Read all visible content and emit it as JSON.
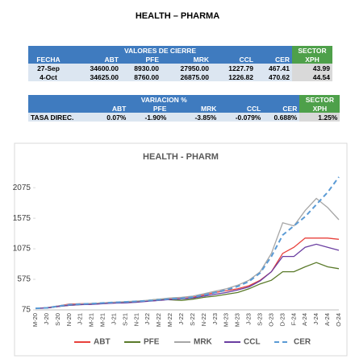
{
  "header": {
    "title": "HEALTH – PHARMA"
  },
  "closing_table": {
    "group_title": "VALORES DE CIERRE",
    "sector_title": "SECTOR",
    "columns": [
      "FECHA",
      "ABT",
      "PFE",
      "MRK",
      "CCL",
      "CER",
      "XPH"
    ],
    "rows": [
      [
        "27-Sep",
        "34600.00",
        "8930.00",
        "27950.00",
        "1227.79",
        "467.41",
        "43.99"
      ],
      [
        "4-Oct",
        "34625.00",
        "8760.00",
        "26875.00",
        "1226.82",
        "470.62",
        "44.54"
      ]
    ]
  },
  "variation_table": {
    "group_title": "VARIACION %",
    "sector_title": "SECTOR",
    "columns": [
      "ABT",
      "PFE",
      "MRK",
      "CCL",
      "CER",
      "XPH"
    ],
    "rows": [
      [
        "TASA DIREC.",
        "0.07%",
        "-1.90%",
        "-3.85%",
        "-0.079%",
        "0.688%",
        "1.25%"
      ]
    ]
  },
  "chart_data": {
    "type": "line",
    "title": "HEALTH - PHARM",
    "categories": [
      "M-20",
      "J-20",
      "S-20",
      "N-20",
      "J-21",
      "M-21",
      "M-21",
      "J-21",
      "S-21",
      "N-21",
      "J-22",
      "M-22",
      "M-22",
      "J-22",
      "S-22",
      "N-22",
      "J-23",
      "M-23",
      "M-23",
      "J-23",
      "S-23",
      "O-23",
      "D-23",
      "F-24",
      "A-24",
      "J-24",
      "A-24",
      "O-24"
    ],
    "series": [
      {
        "name": "ABT",
        "color": "#e8413b",
        "values": [
          100,
          110,
          140,
          170,
          175,
          180,
          190,
          200,
          200,
          210,
          220,
          230,
          250,
          260,
          280,
          320,
          360,
          390,
          420,
          470,
          560,
          700,
          1000,
          1100,
          1250,
          1250,
          1250,
          1230
        ]
      },
      {
        "name": "PFE",
        "color": "#5a7a2a",
        "values": [
          100,
          105,
          130,
          150,
          160,
          170,
          180,
          190,
          200,
          200,
          230,
          250,
          240,
          230,
          250,
          280,
          300,
          330,
          360,
          420,
          500,
          560,
          700,
          700,
          780,
          850,
          780,
          750
        ]
      },
      {
        "name": "MRK",
        "color": "#a6a6a6",
        "values": [
          100,
          110,
          140,
          160,
          170,
          180,
          190,
          200,
          210,
          220,
          230,
          250,
          270,
          280,
          300,
          340,
          380,
          420,
          480,
          560,
          700,
          1000,
          1500,
          1450,
          1700,
          1900,
          1750,
          1550
        ]
      },
      {
        "name": "CCL",
        "color": "#6a3ea1",
        "values": [
          100,
          105,
          130,
          150,
          160,
          165,
          175,
          185,
          190,
          200,
          215,
          230,
          245,
          255,
          270,
          300,
          330,
          360,
          400,
          450,
          550,
          700,
          950,
          950,
          1100,
          1150,
          1100,
          1050
        ]
      },
      {
        "name": "CER",
        "color": "#5b9bd5",
        "dashed": true,
        "values": [
          100,
          108,
          135,
          160,
          170,
          178,
          188,
          198,
          205,
          215,
          225,
          240,
          255,
          265,
          285,
          320,
          360,
          400,
          460,
          540,
          680,
          950,
          1300,
          1450,
          1600,
          1800,
          2000,
          2250
        ]
      }
    ],
    "ylim": [
      75,
      2275
    ],
    "yticks": [
      75,
      575,
      1075,
      1575,
      2075
    ],
    "grid": false
  }
}
